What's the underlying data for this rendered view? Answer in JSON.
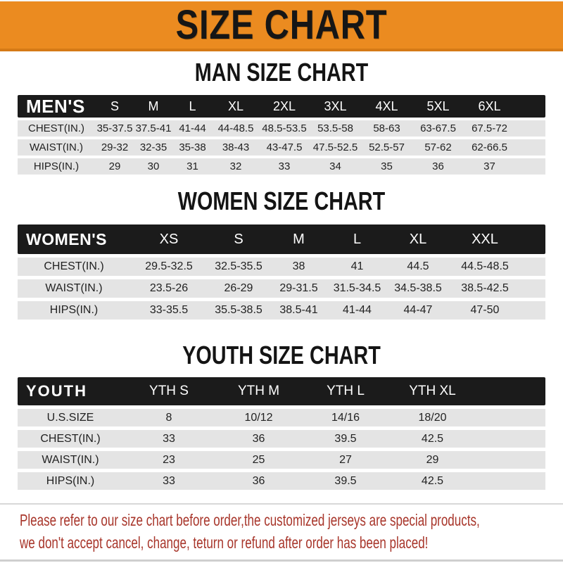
{
  "banner": {
    "title": "SIZE CHART"
  },
  "sections": [
    {
      "heading": "MAN SIZE CHART",
      "header_label": "MEN'S",
      "columns": [
        "S",
        "M",
        "L",
        "XL",
        "2XL",
        "3XL",
        "4XL",
        "5XL",
        "6XL"
      ],
      "rows": [
        {
          "label": "CHEST(IN.)",
          "values": [
            "35-37.5",
            "37.5-41",
            "41-44",
            "44-48.5",
            "48.5-53.5",
            "53.5-58",
            "58-63",
            "63-67.5",
            "67.5-72"
          ]
        },
        {
          "label": "WAIST(IN.)",
          "values": [
            "29-32",
            "32-35",
            "35-38",
            "38-43",
            "43-47.5",
            "47.5-52.5",
            "52.5-57",
            "57-62",
            "62-66.5"
          ]
        },
        {
          "label": "HIPS(IN.)",
          "values": [
            "29",
            "30",
            "31",
            "32",
            "33",
            "34",
            "35",
            "36",
            "37"
          ]
        }
      ]
    },
    {
      "heading": "WOMEN SIZE CHART",
      "header_label": "WOMEN'S",
      "columns": [
        "XS",
        "S",
        "M",
        "L",
        "XL",
        "XXL"
      ],
      "rows": [
        {
          "label": "CHEST(IN.)",
          "values": [
            "29.5-32.5",
            "32.5-35.5",
            "38",
            "41",
            "44.5",
            "44.5-48.5"
          ]
        },
        {
          "label": "WAIST(IN.)",
          "values": [
            "23.5-26",
            "26-29",
            "29-31.5",
            "31.5-34.5",
            "34.5-38.5",
            "38.5-42.5"
          ]
        },
        {
          "label": "HIPS(IN.)",
          "values": [
            "33-35.5",
            "35.5-38.5",
            "38.5-41",
            "41-44",
            "44-47",
            "47-50"
          ]
        }
      ]
    },
    {
      "heading": "YOUTH SIZE CHART",
      "header_label": "YOUTH",
      "columns": [
        "YTH S",
        "YTH M",
        "YTH L",
        "YTH XL"
      ],
      "rows": [
        {
          "label": "U.S.SIZE",
          "values": [
            "8",
            "10/12",
            "14/16",
            "18/20"
          ]
        },
        {
          "label": "CHEST(IN.)",
          "values": [
            "33",
            "36",
            "39.5",
            "42.5"
          ]
        },
        {
          "label": "WAIST(IN.)",
          "values": [
            "23",
            "25",
            "27",
            "29"
          ]
        },
        {
          "label": "HIPS(IN.)",
          "values": [
            "33",
            "36",
            "39.5",
            "42.5"
          ]
        }
      ]
    }
  ],
  "footer": {
    "line1": "Please refer to our size chart before order,the customized jerseys are special products,",
    "line2": "we don't accept cancel, change, teturn or refund after order has been placed!"
  },
  "colors": {
    "banner_bg": "#eb8b20",
    "banner_edge": "#d57a16",
    "bar_bg": "#1b1b1b",
    "row_bg": "#e4e4e4",
    "notice": "#a8362b"
  }
}
